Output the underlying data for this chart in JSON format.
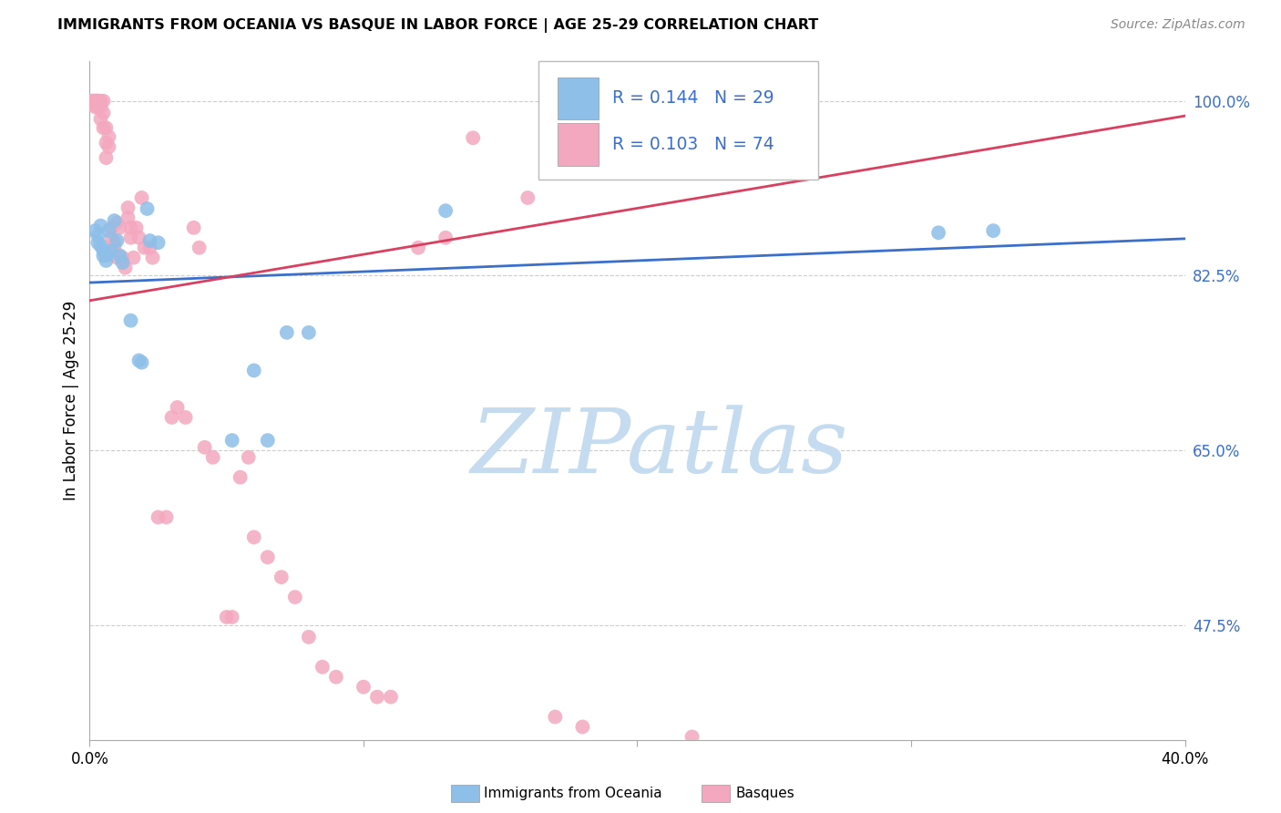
{
  "title": "IMMIGRANTS FROM OCEANIA VS BASQUE IN LABOR FORCE | AGE 25-29 CORRELATION CHART",
  "source": "Source: ZipAtlas.com",
  "ylabel": "In Labor Force | Age 25-29",
  "xlim": [
    0.0,
    0.4
  ],
  "ylim": [
    0.36,
    1.04
  ],
  "yticks_right": [
    1.0,
    0.825,
    0.65,
    0.475
  ],
  "ytick_labels_right": [
    "100.0%",
    "82.5%",
    "65.0%",
    "47.5%"
  ],
  "xticks": [
    0.0,
    0.1,
    0.2,
    0.3,
    0.4
  ],
  "xtick_labels": [
    "0.0%",
    "",
    "",
    "",
    "40.0%"
  ],
  "blue_R": "0.144",
  "blue_N": "29",
  "pink_R": "0.103",
  "pink_N": "74",
  "blue_color": "#8DBFE8",
  "pink_color": "#F4A8C0",
  "legend_text_color": "#3B6FCC",
  "blue_line_color": "#3B6FCC",
  "pink_line_color": "#D94060",
  "blue_scatter_x": [
    0.002,
    0.003,
    0.004,
    0.005,
    0.006,
    0.007,
    0.008,
    0.009,
    0.01,
    0.011,
    0.012,
    0.015,
    0.018,
    0.019,
    0.021,
    0.022,
    0.025,
    0.052,
    0.06,
    0.065,
    0.072,
    0.08,
    0.13,
    0.31,
    0.33,
    0.003,
    0.004,
    0.005,
    0.006
  ],
  "blue_scatter_y": [
    0.87,
    0.865,
    0.875,
    0.85,
    0.845,
    0.87,
    0.85,
    0.88,
    0.86,
    0.845,
    0.838,
    0.78,
    0.74,
    0.738,
    0.892,
    0.86,
    0.858,
    0.66,
    0.73,
    0.66,
    0.768,
    0.768,
    0.89,
    0.868,
    0.87,
    0.858,
    0.855,
    0.845,
    0.84
  ],
  "pink_scatter_x": [
    0.001,
    0.001,
    0.001,
    0.001,
    0.002,
    0.002,
    0.002,
    0.002,
    0.003,
    0.003,
    0.003,
    0.003,
    0.004,
    0.004,
    0.004,
    0.005,
    0.005,
    0.005,
    0.006,
    0.006,
    0.006,
    0.007,
    0.007,
    0.008,
    0.008,
    0.009,
    0.009,
    0.01,
    0.01,
    0.011,
    0.012,
    0.013,
    0.014,
    0.014,
    0.015,
    0.015,
    0.016,
    0.017,
    0.018,
    0.019,
    0.02,
    0.022,
    0.023,
    0.025,
    0.028,
    0.03,
    0.032,
    0.035,
    0.038,
    0.04,
    0.042,
    0.045,
    0.05,
    0.052,
    0.055,
    0.058,
    0.06,
    0.065,
    0.07,
    0.075,
    0.08,
    0.085,
    0.09,
    0.1,
    0.105,
    0.11,
    0.12,
    0.13,
    0.14,
    0.16,
    0.17,
    0.18,
    0.22,
    0.24
  ],
  "pink_scatter_y": [
    1.0,
    1.0,
    1.0,
    0.997,
    1.0,
    1.0,
    0.997,
    0.994,
    1.0,
    1.0,
    0.997,
    0.994,
    1.0,
    0.994,
    0.982,
    1.0,
    0.988,
    0.973,
    0.973,
    0.958,
    0.943,
    0.964,
    0.954,
    0.873,
    0.863,
    0.858,
    0.853,
    0.843,
    0.878,
    0.873,
    0.843,
    0.833,
    0.893,
    0.883,
    0.873,
    0.863,
    0.843,
    0.873,
    0.863,
    0.903,
    0.853,
    0.853,
    0.843,
    0.583,
    0.583,
    0.683,
    0.693,
    0.683,
    0.873,
    0.853,
    0.653,
    0.643,
    0.483,
    0.483,
    0.623,
    0.643,
    0.563,
    0.543,
    0.523,
    0.503,
    0.463,
    0.433,
    0.423,
    0.413,
    0.403,
    0.403,
    0.853,
    0.863,
    0.963,
    0.903,
    0.383,
    0.373,
    0.363,
    0.963
  ],
  "blue_line_pts": [
    [
      0.0,
      0.818
    ],
    [
      0.4,
      0.862
    ]
  ],
  "pink_line_pts": [
    [
      0.0,
      0.8
    ],
    [
      0.4,
      0.985
    ]
  ],
  "watermark_text": "ZIPatlas",
  "watermark_color": "#C5DCF0",
  "bottom_legend_blue_label": "Immigrants from Oceania",
  "bottom_legend_pink_label": "Basques"
}
